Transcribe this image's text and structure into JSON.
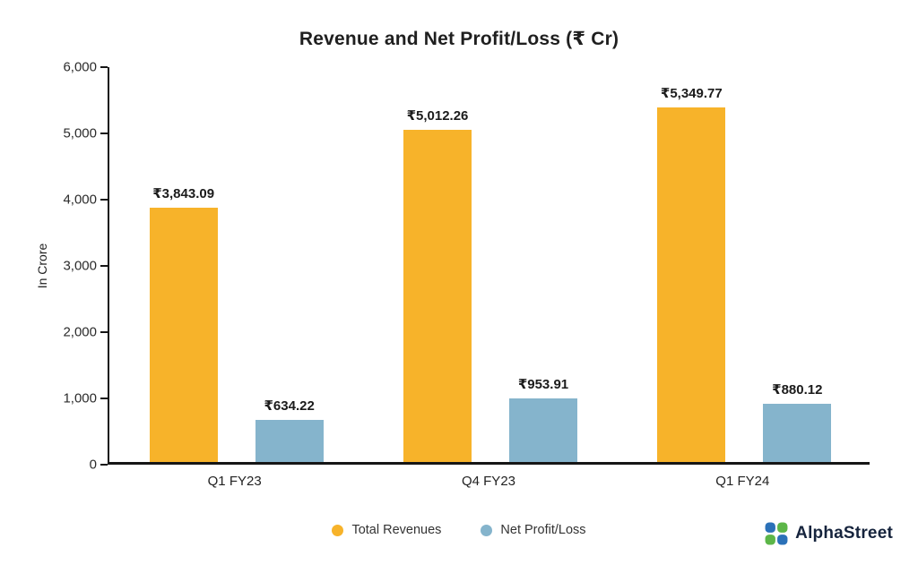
{
  "title": "Revenue and Net Profit/Loss (₹ Cr)",
  "ylabel": "In Crore",
  "legend": [
    {
      "label": "Total Revenues",
      "color": "#F7B32A"
    },
    {
      "label": "Net Profit/Loss",
      "color": "#85B4CC"
    }
  ],
  "logo": {
    "text": "AlphaStreet"
  },
  "chart_data": {
    "type": "bar",
    "title": "Revenue and Net Profit/Loss (₹ Cr)",
    "xlabel": "",
    "ylabel": "In Crore",
    "categories": [
      "Q1 FY23",
      "Q4 FY23",
      "Q1 FY24"
    ],
    "series": [
      {
        "name": "Total Revenues",
        "color": "#F7B32A",
        "values": [
          3843.09,
          5012.26,
          5349.77
        ],
        "labels": [
          "₹3,843.09",
          "₹5,012.26",
          "₹5,349.77"
        ]
      },
      {
        "name": "Net Profit/Loss",
        "color": "#85B4CC",
        "values": [
          634.22,
          953.91,
          880.12
        ],
        "labels": [
          "₹634.22",
          "₹953.91",
          "₹880.12"
        ]
      }
    ],
    "ylim": [
      0,
      6000
    ],
    "yticks": [
      0,
      1000,
      2000,
      3000,
      4000,
      5000,
      6000
    ],
    "ytick_labels": [
      "0",
      "1,000",
      "2,000",
      "3,000",
      "4,000",
      "5,000",
      "6,000"
    ],
    "grid": false,
    "legend_position": "bottom"
  }
}
